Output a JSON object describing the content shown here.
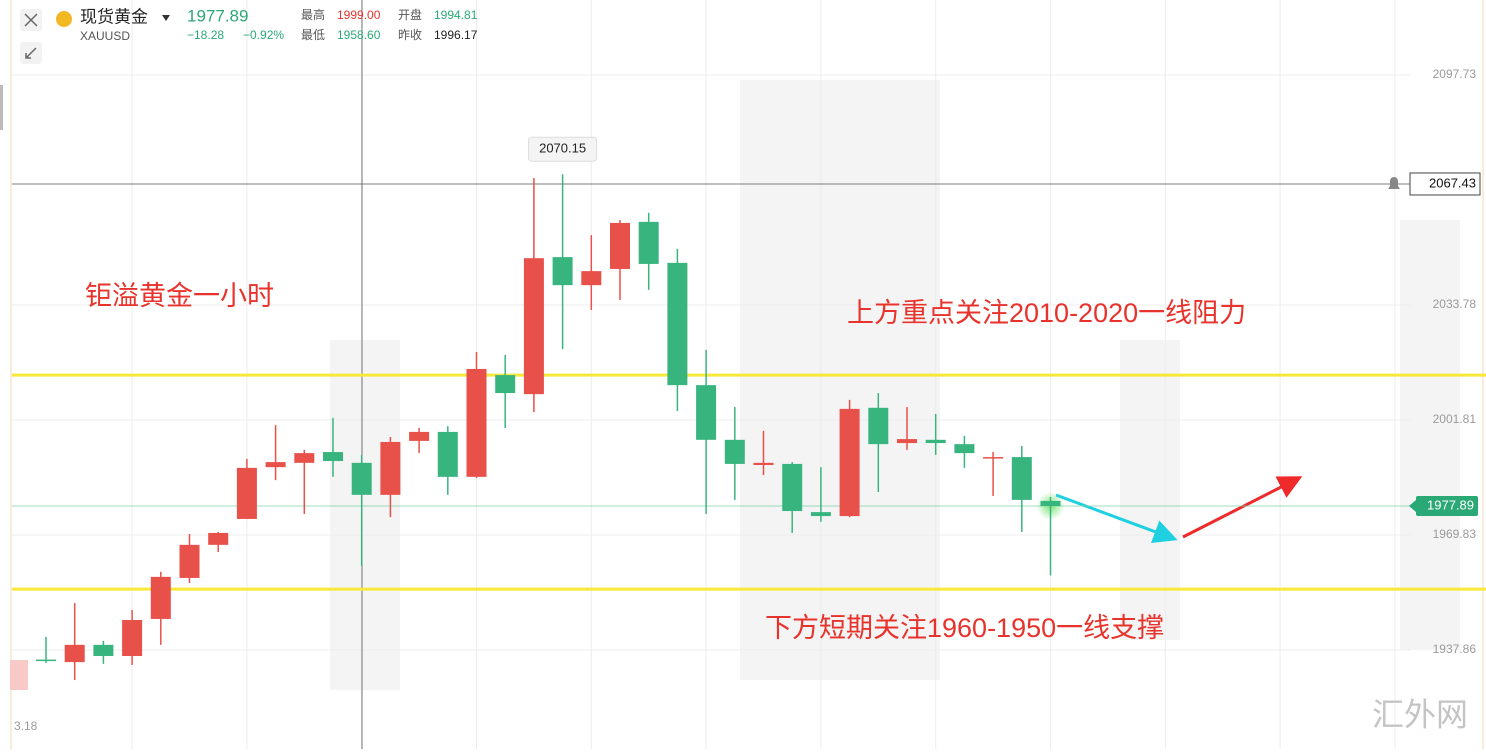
{
  "header": {
    "name": "现货黄金",
    "symbol": "XAUUSD",
    "price": "1977.89",
    "change": "−18.28",
    "change_pct": "−0.92%",
    "high_label": "最高",
    "high": "1999.00",
    "open_label": "开盘",
    "open": "1994.81",
    "low_label": "最低",
    "low": "1958.60",
    "prev_label": "昨收",
    "prev": "1996.17"
  },
  "chart_data": {
    "type": "candlestick",
    "up_color": "#e8504a",
    "down_color": "#38b57f",
    "ylim": [
      1910.34,
      2118.58
    ],
    "yticks": [
      2097.73,
      2033.78,
      2001.81,
      1969.83,
      1937.86
    ],
    "partial_tick_label": "3.18",
    "crosshair_price": 2067.43,
    "hlines": [
      {
        "value": 2014.3,
        "color": "#f7e83a"
      },
      {
        "value": 1954.8,
        "color": "#f7e83a"
      }
    ],
    "annotations": [
      "钜溢黄金一小时",
      "上方重点关注2010-2020一线阻力",
      "下方短期关注1960-1950一线支撑"
    ],
    "watermark": "汇外网",
    "ohlc": [
      [
        1935.2,
        1941.5,
        1934.3,
        1935.1
      ],
      [
        1934.5,
        1950.9,
        1929.5,
        1939.3
      ],
      [
        1939.3,
        1940.4,
        1934.0,
        1936.2
      ],
      [
        1936.2,
        1949.0,
        1933.7,
        1946.2
      ],
      [
        1946.5,
        1959.6,
        1939.3,
        1958.2
      ],
      [
        1957.9,
        1970.1,
        1956.5,
        1967.1
      ],
      [
        1967.1,
        1970.7,
        1965.1,
        1970.4
      ],
      [
        1974.3,
        1991.0,
        1974.3,
        1988.5
      ],
      [
        1988.7,
        2000.4,
        1985.1,
        1990.1
      ],
      [
        1989.9,
        1993.5,
        1975.7,
        1992.6
      ],
      [
        1992.9,
        2002.4,
        1986.0,
        1990.4
      ],
      [
        1989.9,
        1992.1,
        1961.2,
        1981.0
      ],
      [
        1981.0,
        1997.1,
        1974.8,
        1995.7
      ],
      [
        1996.0,
        1999.6,
        1992.6,
        1998.5
      ],
      [
        1998.5,
        2000.1,
        1981.0,
        1986.0
      ],
      [
        1986.0,
        2020.7,
        1985.7,
        2016.0
      ],
      [
        2014.3,
        2019.9,
        1999.6,
        2009.3
      ],
      [
        2009.0,
        2069.1,
        2004.0,
        2046.8
      ],
      [
        2047.1,
        2070.15,
        2021.5,
        2039.3
      ],
      [
        2039.3,
        2053.2,
        2032.4,
        2043.2
      ],
      [
        2043.8,
        2057.4,
        2035.2,
        2056.6
      ],
      [
        2056.9,
        2059.4,
        2038.0,
        2045.2
      ],
      [
        2045.5,
        2049.4,
        2004.3,
        2011.5
      ],
      [
        2011.5,
        2021.3,
        1975.7,
        1996.3
      ],
      [
        1996.3,
        2005.4,
        1979.6,
        1989.6
      ],
      [
        1989.3,
        1998.8,
        1986.5,
        1989.9
      ],
      [
        1989.6,
        1990.1,
        1970.4,
        1976.5
      ],
      [
        1976.2,
        1988.7,
        1973.5,
        1975.1
      ],
      [
        1975.1,
        2007.4,
        1974.8,
        2004.9
      ],
      [
        2005.2,
        2009.3,
        1981.8,
        1995.1
      ],
      [
        1995.4,
        2005.4,
        1993.5,
        1996.5
      ],
      [
        1996.3,
        2003.5,
        1992.1,
        1995.4
      ],
      [
        1995.1,
        1997.4,
        1988.5,
        1992.6
      ],
      [
        1991.3,
        1992.9,
        1980.7,
        1991.5
      ],
      [
        1991.5,
        1994.6,
        1970.7,
        1979.6
      ],
      [
        1979.3,
        1980.4,
        1958.6,
        1977.89
      ]
    ]
  }
}
